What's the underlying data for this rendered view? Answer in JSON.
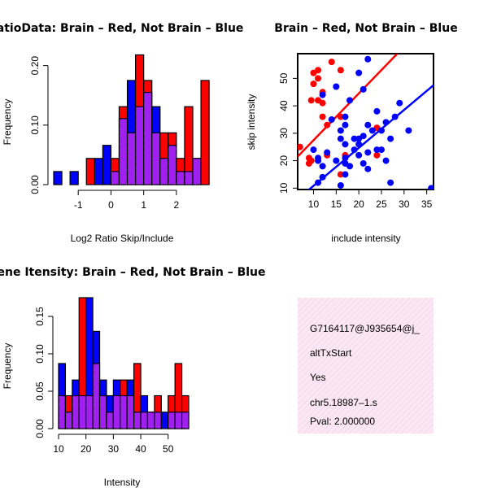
{
  "colors": {
    "red": "#ff0000",
    "blue": "#0000ff",
    "purple": "#a020f0",
    "info_bg": "#f8dcee",
    "pval": "#a52a2a"
  },
  "chart_data": [
    {
      "id": "ratio",
      "type": "bar",
      "title": "RatioData: Brain – Red, Not Brain – Blue",
      "xlabel": "Log2 Ratio Skip/Include",
      "ylabel": "Frequency",
      "xlim": [
        -1.75,
        2.4
      ],
      "ylim": [
        0,
        0.22
      ],
      "xticks": [
        -1,
        0,
        1,
        2
      ],
      "yticks": [
        0.0,
        0.1,
        0.2
      ],
      "ytick_labels": [
        "0.00",
        "0.10",
        "0.20"
      ],
      "bin_width": 0.25,
      "series": [
        {
          "name": "Not Brain",
          "color": "blue",
          "start": -1.75,
          "values": [
            0.022,
            0,
            0.022,
            0,
            0,
            0.044,
            0.066,
            0.022,
            0.111,
            0.175,
            0.131,
            0.155,
            0.131,
            0.044,
            0.066,
            0.022,
            0.022,
            0.044,
            0
          ]
        },
        {
          "name": "Brain",
          "color": "red",
          "start": -1.75,
          "values": [
            0,
            0,
            0,
            0,
            0.044,
            0,
            0,
            0.044,
            0.131,
            0.087,
            0.218,
            0.175,
            0.087,
            0.087,
            0.087,
            0.044,
            0.131,
            0.044,
            0.175
          ]
        }
      ]
    },
    {
      "id": "scatter",
      "type": "scatter",
      "title": "Brain – Red, Not Brain – Blue",
      "xlabel": "include intensity",
      "ylabel": "skip intensity",
      "xlim": [
        6.5,
        36.5
      ],
      "ylim": [
        9.5,
        59
      ],
      "xticks": [
        10,
        15,
        20,
        25,
        30,
        35
      ],
      "yticks": [
        10,
        20,
        30,
        40,
        50
      ],
      "series": [
        {
          "name": "Brain",
          "color": "red",
          "points": [
            [
              7,
              25
            ],
            [
              9,
              21
            ],
            [
              9,
              19
            ],
            [
              9.5,
              20
            ],
            [
              9.5,
              42
            ],
            [
              10,
              48
            ],
            [
              10,
              52
            ],
            [
              11,
              53
            ],
            [
              11,
              42
            ],
            [
              11,
              50
            ],
            [
              12,
              36
            ],
            [
              12,
              41
            ],
            [
              12,
              45
            ],
            [
              13,
              33
            ],
            [
              13,
              22
            ],
            [
              14,
              56
            ],
            [
              16,
              53
            ],
            [
              16,
              15
            ],
            [
              16,
              36
            ],
            [
              17,
              22
            ],
            [
              24,
              22
            ],
            [
              24,
              32
            ]
          ],
          "fit": [
            [
              6.5,
              21.5
            ],
            [
              28.5,
              59
            ]
          ]
        },
        {
          "name": "Not Brain",
          "color": "blue",
          "points": [
            [
              10,
              24
            ],
            [
              11,
              12
            ],
            [
              11,
              21
            ],
            [
              11,
              20
            ],
            [
              12,
              18
            ],
            [
              12,
              14
            ],
            [
              12,
              44
            ],
            [
              13,
              23
            ],
            [
              14,
              35
            ],
            [
              15,
              47
            ],
            [
              15,
              20
            ],
            [
              16,
              11
            ],
            [
              16,
              31
            ],
            [
              16,
              28
            ],
            [
              17,
              33
            ],
            [
              17,
              26
            ],
            [
              17,
              21
            ],
            [
              17,
              19
            ],
            [
              17,
              15
            ],
            [
              17,
              36
            ],
            [
              18,
              18
            ],
            [
              18,
              42
            ],
            [
              19,
              28
            ],
            [
              19,
              24
            ],
            [
              20,
              28
            ],
            [
              20,
              22
            ],
            [
              20,
              26
            ],
            [
              20,
              52
            ],
            [
              21,
              19
            ],
            [
              21,
              46
            ],
            [
              21,
              29
            ],
            [
              22,
              57
            ],
            [
              22,
              23
            ],
            [
              22,
              17
            ],
            [
              22,
              33
            ],
            [
              23,
              31
            ],
            [
              24,
              38
            ],
            [
              24,
              24
            ],
            [
              25,
              31
            ],
            [
              25,
              24
            ],
            [
              26,
              20
            ],
            [
              26,
              34
            ],
            [
              27,
              12
            ],
            [
              27,
              28
            ],
            [
              28,
              36
            ],
            [
              29,
              41
            ],
            [
              31,
              31
            ],
            [
              36,
              10
            ]
          ],
          "fit": [
            [
              6.5,
              6
            ],
            [
              36.5,
              47.5
            ]
          ]
        }
      ]
    },
    {
      "id": "intensity",
      "type": "bar",
      "title": "Gene Itensity: Brain – Red, Not Brain – Blue",
      "xlabel": "Intensity",
      "ylabel": "Frequency",
      "xlim": [
        10,
        57.5
      ],
      "ylim": [
        0,
        0.175
      ],
      "xticks": [
        10,
        20,
        30,
        40,
        50
      ],
      "yticks": [
        0.0,
        0.05,
        0.1,
        0.15
      ],
      "ytick_labels": [
        "0.00",
        "0.05",
        "0.10",
        "0.15"
      ],
      "bin_width": 2.5,
      "series": [
        {
          "name": "Not Brain",
          "color": "blue",
          "start": 10,
          "values": [
            0.087,
            0.022,
            0.065,
            0.044,
            0.175,
            0.13,
            0.065,
            0.044,
            0.065,
            0.044,
            0.065,
            0.022,
            0.044,
            0.022,
            0.022,
            0.022,
            0.022,
            0.022,
            0.022
          ]
        },
        {
          "name": "Brain",
          "color": "red",
          "start": 10,
          "values": [
            0.044,
            0.044,
            0.044,
            0.175,
            0.044,
            0.087,
            0.044,
            0.022,
            0.044,
            0.065,
            0.044,
            0.087,
            0.022,
            0.022,
            0.044,
            0,
            0.044,
            0.087,
            0.044
          ]
        }
      ]
    }
  ],
  "info": {
    "gene_id": "G7164117@J935654@j_",
    "event": "altTxStart",
    "flag": "Yes",
    "location": "chr5.18987–1.s",
    "pval": "Pval: 2.000000"
  }
}
